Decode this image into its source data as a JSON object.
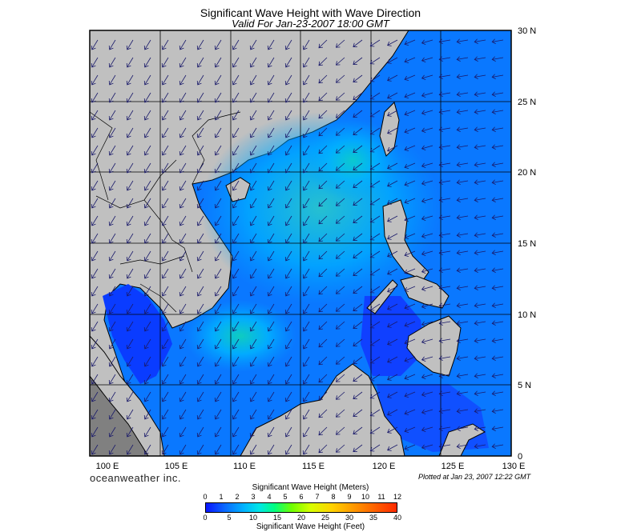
{
  "header": {
    "title": "Significant Wave Height with Wave Direction",
    "subtitle": "Valid For Jan-23-2007 18:00 GMT"
  },
  "map": {
    "lon_range": [
      100,
      130
    ],
    "lat_range": [
      0,
      30
    ],
    "lon_labels": [
      "100 E",
      "105 E",
      "110 E",
      "115 E",
      "120 E",
      "125 E",
      "130 E"
    ],
    "lat_labels": [
      "30 N",
      "25 N",
      "20 N",
      "15 N",
      "10 N",
      "5 N",
      "0"
    ],
    "colors": {
      "land": "#c0c0c0",
      "coast": "#000000",
      "arrow": "#1a1a6a",
      "grid": "#000000"
    }
  },
  "brand": "oceanweather inc.",
  "plotted": "Plotted at Jan 23, 2007 12:22 GMT",
  "legend": {
    "title_meters": "Significant Wave Height (Meters)",
    "title_feet": "Significant Wave Height (Feet)",
    "meter_ticks": [
      "0",
      "1",
      "2",
      "3",
      "4",
      "5",
      "6",
      "7",
      "8",
      "9",
      "10",
      "11",
      "12"
    ],
    "feet_ticks": [
      "0",
      "5",
      "10",
      "15",
      "20",
      "25",
      "30",
      "35",
      "40"
    ]
  }
}
